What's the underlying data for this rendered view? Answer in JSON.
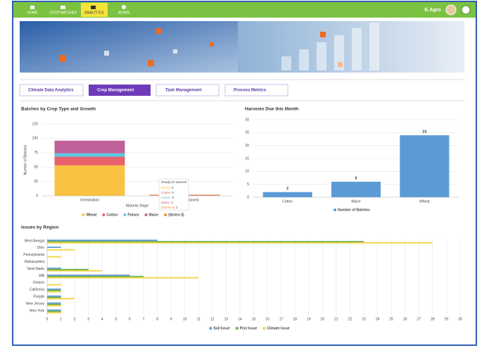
{
  "nav": {
    "items": [
      "HOME",
      "CROP BATCHES",
      "ANALYTICS",
      "ADMIN"
    ],
    "brand": "E-Agro"
  },
  "tabs": [
    "Climate Data Analytics",
    "Crop Management",
    "Task Management",
    "Process Metrics"
  ],
  "chart_data": [
    {
      "type": "bar",
      "stacked": true,
      "title": "Batches by Crop Type and Growth",
      "x_label": "Maturity Stage",
      "y_label": "Number of Batches",
      "categories": [
        "Germination",
        "Ready for Harvest"
      ],
      "series": [
        {
          "name": "Wheat",
          "color": "#f9c240",
          "values": [
            53,
            0
          ]
        },
        {
          "name": "Cotton",
          "color": "#e8606a",
          "values": [
            15,
            0
          ]
        },
        {
          "name": "Pulses",
          "color": "#5bc8e0",
          "values": [
            6,
            0
          ]
        },
        {
          "name": "Maize",
          "color": "#c0609a",
          "values": [
            22,
            1
          ]
        },
        {
          "name": "(Series 5)",
          "color": "#f08a24",
          "values": [
            0,
            1
          ]
        }
      ],
      "ylim": [
        0,
        125
      ],
      "yticks": [
        0,
        25,
        50,
        75,
        100,
        125
      ],
      "grid": true,
      "legend": "bottom"
    },
    {
      "type": "bar",
      "title": "Harvests Due this Month",
      "categories": [
        "Cotton",
        "Maize",
        "Wheat"
      ],
      "series": [
        {
          "name": "Number of Batches",
          "color": "#5b9bd5",
          "values": [
            2,
            6,
            24
          ]
        }
      ],
      "value_labels_shown": true,
      "ylim": [
        0,
        30
      ],
      "yticks": [
        0,
        5,
        10,
        15,
        20,
        25,
        30
      ],
      "grid": true,
      "legend": "bottom"
    },
    {
      "type": "hbar",
      "title": "Issues by Region",
      "categories": [
        "West Bengal",
        "Ohio",
        "Pennsylvania",
        "Maharashtra",
        "Tamil Nadu",
        "WB",
        "Ontario",
        "California",
        "Punjab",
        "New Jersey",
        "New York"
      ],
      "series": [
        {
          "name": "Soil Issue",
          "color": "#5b9bd5",
          "values": [
            8,
            1,
            0,
            0,
            1,
            6,
            0,
            1,
            1,
            1,
            1
          ]
        },
        {
          "name": "Pest Issue",
          "color": "#6ab04c",
          "values": [
            23,
            0,
            0,
            0,
            3,
            7,
            0,
            1,
            1,
            1,
            1
          ]
        },
        {
          "name": "Climate Issue",
          "color": "#f5d442",
          "values": [
            28,
            2,
            1,
            0,
            4,
            11,
            1,
            1,
            2,
            1,
            1
          ]
        }
      ],
      "xlim": [
        0,
        30
      ],
      "xticks": [
        0,
        1,
        2,
        3,
        4,
        5,
        6,
        7,
        8,
        9,
        10,
        11,
        12,
        13,
        14,
        15,
        16,
        17,
        18,
        19,
        20,
        21,
        22,
        23,
        24,
        25,
        26,
        27,
        28,
        29,
        30
      ],
      "grid": true,
      "legend": "bottom"
    }
  ]
}
